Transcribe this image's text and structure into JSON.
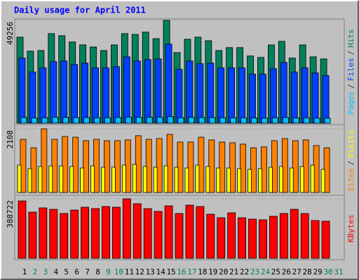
{
  "chart_data": [
    {
      "type": "bar",
      "title": "Daily usage for April 2011",
      "legend_separator": "/",
      "ylim": [
        0,
        49256
      ],
      "yticks": [
        49256
      ],
      "series": [
        {
          "name": "Pages",
          "color": "#00c0ff",
          "values": [
            2700,
            2500,
            2600,
            2900,
            2800,
            2700,
            2700,
            2600,
            2600,
            2700,
            2900,
            2800,
            2800,
            2800,
            3100,
            2600,
            2800,
            2700,
            2700,
            2600,
            2600,
            2600,
            2500,
            2400,
            2600,
            2700,
            2500,
            2600,
            2400,
            2400,
            null
          ]
        },
        {
          "name": "Files",
          "color": "#0040ff",
          "values": [
            31200,
            24500,
            26500,
            29500,
            29800,
            28100,
            28800,
            26500,
            26500,
            27100,
            31800,
            29800,
            30500,
            30800,
            37900,
            25800,
            29800,
            28500,
            28800,
            26500,
            26500,
            26500,
            23500,
            23500,
            26100,
            29100,
            24500,
            26500,
            24100,
            22800,
            null
          ]
        },
        {
          "name": "Hits",
          "color": "#00805c",
          "values": [
            41200,
            34500,
            34800,
            42900,
            41900,
            38900,
            37500,
            36500,
            34800,
            37500,
            42900,
            42500,
            43600,
            40500,
            49256,
            33800,
            40200,
            41200,
            39500,
            34800,
            36200,
            36200,
            32200,
            31500,
            37500,
            39200,
            31200,
            37500,
            31800,
            30800,
            null
          ]
        }
      ]
    },
    {
      "type": "bar",
      "legend_separator": "/",
      "ylim": [
        0,
        2108
      ],
      "yticks": [
        2108
      ],
      "series": [
        {
          "name": "Sites",
          "color": "#ff8000",
          "values": [
            1760,
            1480,
            2108,
            1760,
            1855,
            1830,
            1715,
            1760,
            1715,
            1715,
            1740,
            1880,
            1760,
            1785,
            1925,
            1670,
            1670,
            1830,
            1740,
            1670,
            1645,
            1600,
            1480,
            1510,
            1715,
            1785,
            1715,
            1740,
            1555,
            1480,
            null
          ]
        },
        {
          "name": "Visits",
          "color": "#ffff00",
          "values": [
            905,
            790,
            860,
            880,
            880,
            860,
            810,
            880,
            835,
            835,
            905,
            930,
            860,
            835,
            880,
            835,
            810,
            905,
            860,
            810,
            810,
            790,
            765,
            790,
            835,
            860,
            810,
            860,
            905,
            765,
            null
          ]
        }
      ]
    },
    {
      "type": "bar",
      "ylim": [
        0,
        388722
      ],
      "yticks": [
        388722
      ],
      "categories": [
        "1",
        "2",
        "3",
        "4",
        "5",
        "6",
        "7",
        "8",
        "9",
        "10",
        "11",
        "12",
        "13",
        "14",
        "15",
        "16",
        "17",
        "18",
        "19",
        "20",
        "21",
        "22",
        "23",
        "24",
        "25",
        "26",
        "27",
        "28",
        "29",
        "30",
        "31"
      ],
      "category_colors": [
        "#000000",
        "#00805c",
        "#00805c",
        "#000000",
        "#000000",
        "#000000",
        "#000000",
        "#000000",
        "#00805c",
        "#00805c",
        "#000000",
        "#000000",
        "#000000",
        "#000000",
        "#000000",
        "#00805c",
        "#00805c",
        "#000000",
        "#000000",
        "#000000",
        "#000000",
        "#000000",
        "#00805c",
        "#00805c",
        "#000000",
        "#000000",
        "#000000",
        "#000000",
        "#000000",
        "#00805c",
        "#00805c"
      ],
      "series": [
        {
          "name": "KBytes",
          "color": "#ff0000",
          "values": [
            375000,
            301800,
            329300,
            320100,
            292700,
            315500,
            333800,
            324700,
            338400,
            333800,
            388722,
            356700,
            324700,
            306400,
            343000,
            292700,
            347500,
            338400,
            288100,
            265200,
            297200,
            265200,
            256100,
            251500,
            274400,
            292700,
            320100,
            292700,
            246900,
            242400,
            null
          ]
        }
      ]
    }
  ]
}
